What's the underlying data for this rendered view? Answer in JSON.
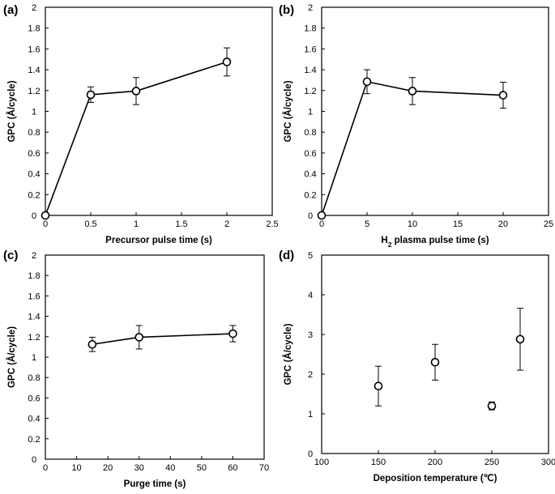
{
  "chart_data": [
    {
      "panel": "(a)",
      "type": "line",
      "xlabel": "Precursor pulse time (s)",
      "ylabel": "GPC (Å/cycle)",
      "xlim": [
        0,
        2.5
      ],
      "ylim": [
        0,
        2
      ],
      "xticks": [
        0,
        0.5,
        1,
        1.5,
        2,
        2.5
      ],
      "xtick_labels": [
        "0",
        "0.5",
        "1",
        "1.5",
        "2",
        "2.5"
      ],
      "yticks": [
        0,
        0.2,
        0.4,
        0.6,
        0.8,
        1,
        1.2,
        1.4,
        1.6,
        1.8,
        2
      ],
      "ytick_labels": [
        "0",
        "0.2",
        "0.4",
        "0.6",
        "0.8",
        "1",
        "1.2",
        "1.4",
        "1.6",
        "1.8",
        "2"
      ],
      "connected": true,
      "points": [
        {
          "x": 0,
          "y": 0,
          "err": 0
        },
        {
          "x": 0.5,
          "y": 1.16,
          "err": 0.075
        },
        {
          "x": 1,
          "y": 1.195,
          "err": 0.13
        },
        {
          "x": 2,
          "y": 1.475,
          "err": 0.135
        }
      ]
    },
    {
      "panel": "(b)",
      "type": "line",
      "xlabel": "H",
      "xlabel_sub": "2",
      "xlabel_rest": " plasma pulse time (s)",
      "ylabel": "GPC (Å/cycle)",
      "xlim": [
        0,
        25
      ],
      "ylim": [
        0,
        2
      ],
      "xticks": [
        0,
        5,
        10,
        15,
        20,
        25
      ],
      "xtick_labels": [
        "0",
        "5",
        "10",
        "15",
        "20",
        "25"
      ],
      "yticks": [
        0,
        0.2,
        0.4,
        0.6,
        0.8,
        1,
        1.2,
        1.4,
        1.6,
        1.8,
        2
      ],
      "ytick_labels": [
        "0",
        "0.2",
        "0.4",
        "0.6",
        "0.8",
        "1",
        "1.2",
        "1.4",
        "1.6",
        "1.8",
        "2"
      ],
      "connected": true,
      "points": [
        {
          "x": 0,
          "y": 0,
          "err": 0
        },
        {
          "x": 5,
          "y": 1.285,
          "err": 0.115
        },
        {
          "x": 10,
          "y": 1.195,
          "err": 0.13
        },
        {
          "x": 20,
          "y": 1.155,
          "err": 0.125
        }
      ]
    },
    {
      "panel": "(c)",
      "type": "line",
      "xlabel": "Purge time (s)",
      "ylabel": "GPC (Å/cycle)",
      "xlim": [
        0,
        70
      ],
      "ylim": [
        0,
        2
      ],
      "xticks": [
        0,
        10,
        20,
        30,
        40,
        50,
        60,
        70
      ],
      "xtick_labels": [
        "0",
        "10",
        "20",
        "30",
        "40",
        "50",
        "60",
        "70"
      ],
      "yticks": [
        0,
        0.2,
        0.4,
        0.6,
        0.8,
        1,
        1.2,
        1.4,
        1.6,
        1.8,
        2
      ],
      "ytick_labels": [
        "0",
        "0.2",
        "0.4",
        "0.6",
        "0.8",
        "1",
        "1.2",
        "1.4",
        "1.6",
        "1.8",
        "2"
      ],
      "connected": true,
      "points": [
        {
          "x": 15,
          "y": 1.125,
          "err": 0.07
        },
        {
          "x": 30,
          "y": 1.195,
          "err": 0.115
        },
        {
          "x": 60,
          "y": 1.23,
          "err": 0.08
        }
      ]
    },
    {
      "panel": "(d)",
      "type": "scatter",
      "xlabel": "Deposition temperature (℃)",
      "ylabel": "GPC (Å/cycle)",
      "xlim": [
        100,
        300
      ],
      "ylim": [
        0,
        5
      ],
      "xticks": [
        100,
        150,
        200,
        250,
        300
      ],
      "xtick_labels": [
        "100",
        "150",
        "200",
        "250",
        "300"
      ],
      "yticks": [
        0,
        1,
        2,
        3,
        4,
        5
      ],
      "ytick_labels": [
        "0",
        "1",
        "2",
        "3",
        "4",
        "5"
      ],
      "connected": false,
      "points": [
        {
          "x": 150,
          "y": 1.7,
          "err": 0.5
        },
        {
          "x": 200,
          "y": 2.3,
          "err": 0.45
        },
        {
          "x": 250,
          "y": 1.2,
          "err": 0.1
        },
        {
          "x": 275,
          "y": 2.88,
          "err": 0.78
        }
      ]
    }
  ]
}
